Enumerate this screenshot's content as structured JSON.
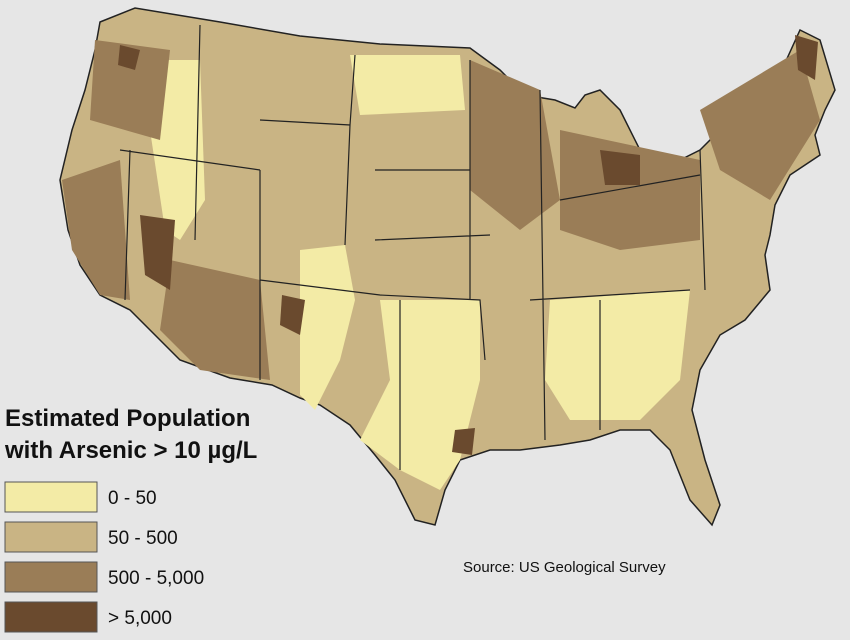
{
  "map": {
    "title_lines": [
      "Estimated Population",
      "with Arsenic > 10 µg/L"
    ],
    "legend": [
      {
        "label": "0 - 50",
        "color": "#f3eba6"
      },
      {
        "label": "50 - 500",
        "color": "#c9b484"
      },
      {
        "label": "500 - 5,000",
        "color": "#9a7d57"
      },
      {
        "label": "> 5,000",
        "color": "#6a4a2e"
      }
    ],
    "source": "Source: US Geological Survey"
  }
}
